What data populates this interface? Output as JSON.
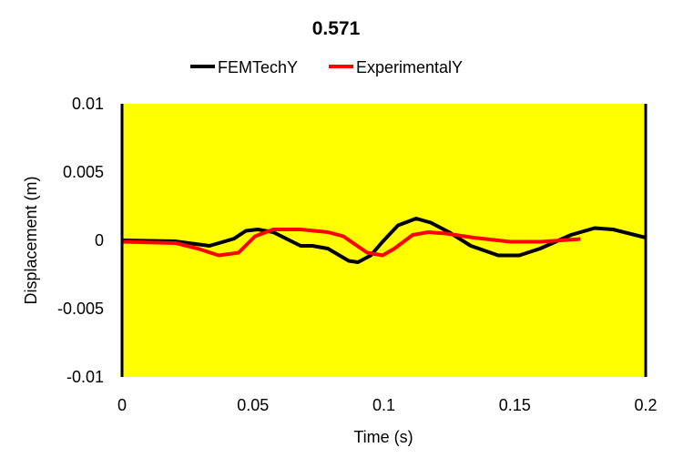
{
  "chart_data": {
    "type": "line",
    "title": "0.571",
    "xlabel": "Time (s)",
    "ylabel": "Displacement (m)",
    "xlim": [
      0,
      0.2
    ],
    "ylim": [
      -0.01,
      0.01
    ],
    "xticks": [
      "0",
      "0.05",
      "0.1",
      "0.15",
      "0.2"
    ],
    "yticks": [
      "0.01",
      "0.005",
      "0",
      "-0.005",
      "-0.01"
    ],
    "xtick_values": [
      0,
      0.05,
      0.1,
      0.15,
      0.2
    ],
    "ytick_values": [
      0.01,
      0.005,
      0,
      -0.005,
      -0.01
    ],
    "plot_background": "#FFFF00",
    "grid": false,
    "legend_position": "top",
    "series": [
      {
        "name": "FEMTechY",
        "color": "#000000",
        "x": [
          0,
          0.0205,
          0.0334,
          0.0428,
          0.0473,
          0.0518,
          0.0577,
          0.0682,
          0.0727,
          0.0786,
          0.0866,
          0.0901,
          0.095,
          0.0995,
          0.1054,
          0.1123,
          0.1179,
          0.1249,
          0.1332,
          0.1437,
          0.1517,
          0.1597,
          0.1715,
          0.1805,
          0.1875,
          0.2
        ],
        "y": [
          0,
          -7e-05,
          -0.0004,
          0.00013,
          0.0007,
          0.0008,
          0.0006,
          -0.0004,
          -0.0004,
          -0.0006,
          -0.0015,
          -0.0016,
          -0.0011,
          -0.0001,
          0.0011,
          0.0016,
          0.0013,
          0.0006,
          -0.0004,
          -0.0011,
          -0.0011,
          -0.0006,
          0.0004,
          0.0009,
          0.0008,
          0.0002
        ]
      },
      {
        "name": "ExperimentalY",
        "color": "#FF0000",
        "x": [
          0,
          0.0205,
          0.0289,
          0.0369,
          0.0445,
          0.0508,
          0.0577,
          0.0682,
          0.0786,
          0.0845,
          0.0936,
          0.0995,
          0.104,
          0.111,
          0.1169,
          0.1238,
          0.1343,
          0.1482,
          0.1597,
          0.175
        ],
        "y": [
          -0.0001,
          -0.0002,
          -0.0006,
          -0.0011,
          -0.0009,
          0.0003,
          0.0008,
          0.0008,
          0.0006,
          0.0003,
          -0.0009,
          -0.0011,
          -0.0006,
          0.0004,
          0.0006,
          0.0005,
          0.0002,
          -0.0001,
          -0.0001,
          0.0001
        ]
      }
    ]
  }
}
